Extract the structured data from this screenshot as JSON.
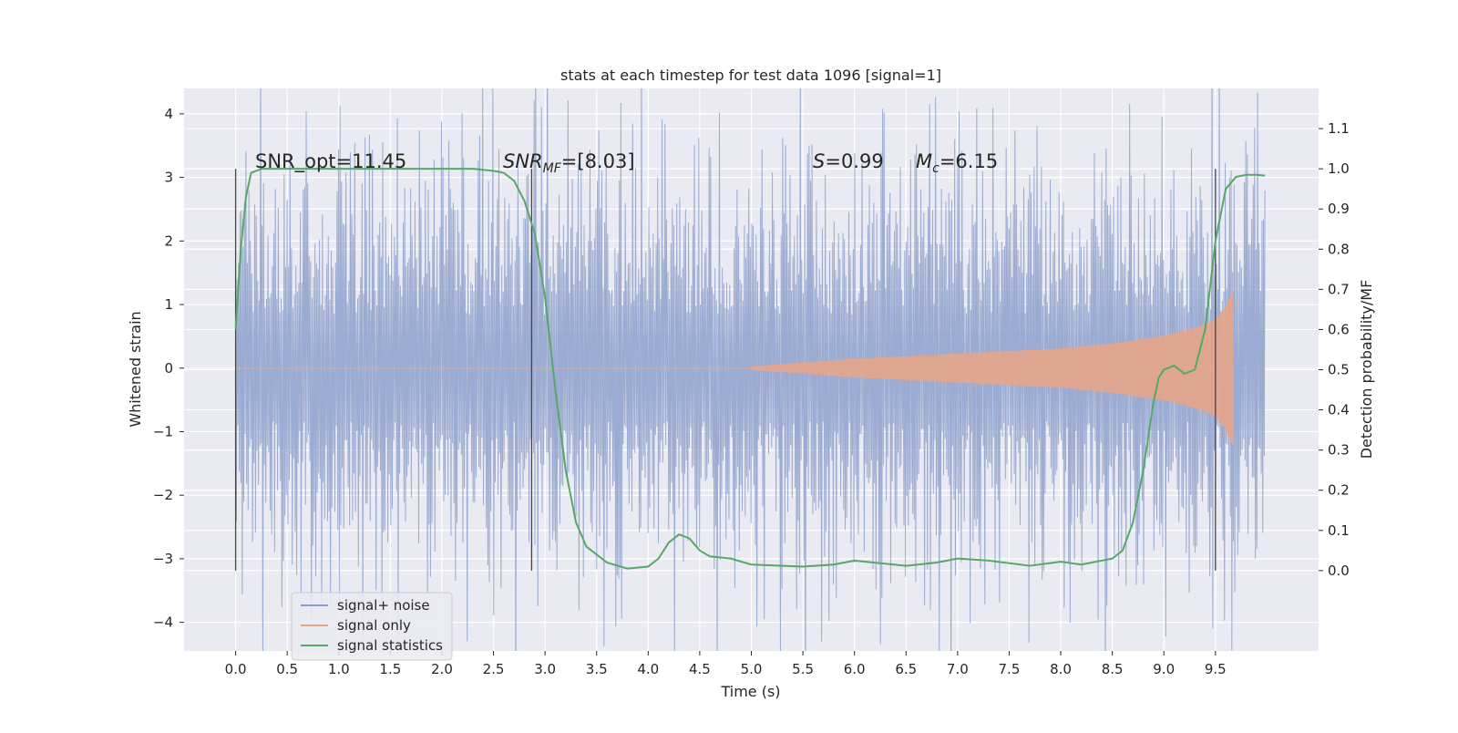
{
  "chart_data": {
    "type": "line",
    "title": "stats at each timestep for test data 1096 [signal=1]",
    "xlabel": "Time (s)",
    "ylabel": "Whitened strain",
    "ylabel_right": "Detection probability/MF",
    "xlim": [
      -0.5,
      10.5
    ],
    "ylim": [
      -4.45,
      4.4
    ],
    "ylim_right": [
      -0.2,
      1.2
    ],
    "xticks": [
      "0.0",
      "0.5",
      "1.0",
      "1.5",
      "2.0",
      "2.5",
      "3.0",
      "3.5",
      "4.0",
      "4.5",
      "5.0",
      "5.5",
      "6.0",
      "6.5",
      "7.0",
      "7.5",
      "8.0",
      "8.5",
      "9.0",
      "9.5"
    ],
    "yticks_left": [
      "−4",
      "−3",
      "−2",
      "−1",
      "0",
      "1",
      "2",
      "3",
      "4"
    ],
    "yticks_right": [
      "0.0",
      "0.1",
      "0.2",
      "0.3",
      "0.4",
      "0.5",
      "0.6",
      "0.7",
      "0.8",
      "0.9",
      "1.0",
      "1.1"
    ],
    "grid": true,
    "legend_position": "lower-left",
    "annotations": {
      "snr_opt": "SNR_opt=11.45",
      "snr_mf_italic": "SNR",
      "snr_mf_sub": "MF",
      "snr_mf_value": "=[8.03]",
      "s_italic": "S",
      "s_value": "=0.99",
      "mc_italic": "M",
      "mc_sub": "c",
      "mc_value": "=6.15"
    },
    "vertical_markers_x": [
      0.0,
      2.87,
      9.5
    ],
    "series": [
      {
        "name": "signal+ noise",
        "color": "#8da0cb",
        "axis": "left",
        "noise_envelope": [
          0.0,
          9.98
        ],
        "approx_amplitude": 2.4
      },
      {
        "name": "signal only",
        "color": "#e5a58a",
        "axis": "left",
        "envelope_x": [
          5.0,
          6.0,
          7.0,
          8.0,
          8.5,
          9.0,
          9.3,
          9.5,
          9.6,
          9.67
        ],
        "envelope_y": [
          0.02,
          0.14,
          0.22,
          0.3,
          0.38,
          0.5,
          0.62,
          0.75,
          0.95,
          1.2
        ]
      },
      {
        "name": "signal statistics",
        "color": "#55a868",
        "axis": "right",
        "x": [
          0.0,
          0.05,
          0.1,
          0.15,
          0.25,
          0.5,
          1.0,
          1.5,
          2.0,
          2.3,
          2.5,
          2.6,
          2.7,
          2.8,
          2.9,
          3.0,
          3.1,
          3.2,
          3.3,
          3.4,
          3.6,
          3.8,
          4.0,
          4.1,
          4.2,
          4.3,
          4.4,
          4.5,
          4.6,
          4.8,
          5.0,
          5.5,
          5.8,
          6.0,
          6.5,
          6.8,
          7.0,
          7.3,
          7.7,
          8.0,
          8.2,
          8.5,
          8.6,
          8.7,
          8.8,
          8.9,
          8.95,
          9.0,
          9.1,
          9.2,
          9.3,
          9.4,
          9.5,
          9.6,
          9.7,
          9.8,
          9.9,
          9.98
        ],
        "y": [
          0.6,
          0.8,
          0.93,
          0.99,
          1.0,
          1.0,
          1.0,
          1.0,
          1.0,
          1.0,
          0.995,
          0.99,
          0.97,
          0.92,
          0.84,
          0.68,
          0.45,
          0.25,
          0.12,
          0.06,
          0.02,
          0.005,
          0.01,
          0.03,
          0.07,
          0.09,
          0.08,
          0.05,
          0.035,
          0.03,
          0.015,
          0.01,
          0.015,
          0.025,
          0.012,
          0.02,
          0.03,
          0.025,
          0.012,
          0.022,
          0.015,
          0.03,
          0.05,
          0.12,
          0.25,
          0.42,
          0.48,
          0.5,
          0.51,
          0.49,
          0.5,
          0.6,
          0.82,
          0.95,
          0.98,
          0.985,
          0.985,
          0.983
        ]
      }
    ]
  }
}
